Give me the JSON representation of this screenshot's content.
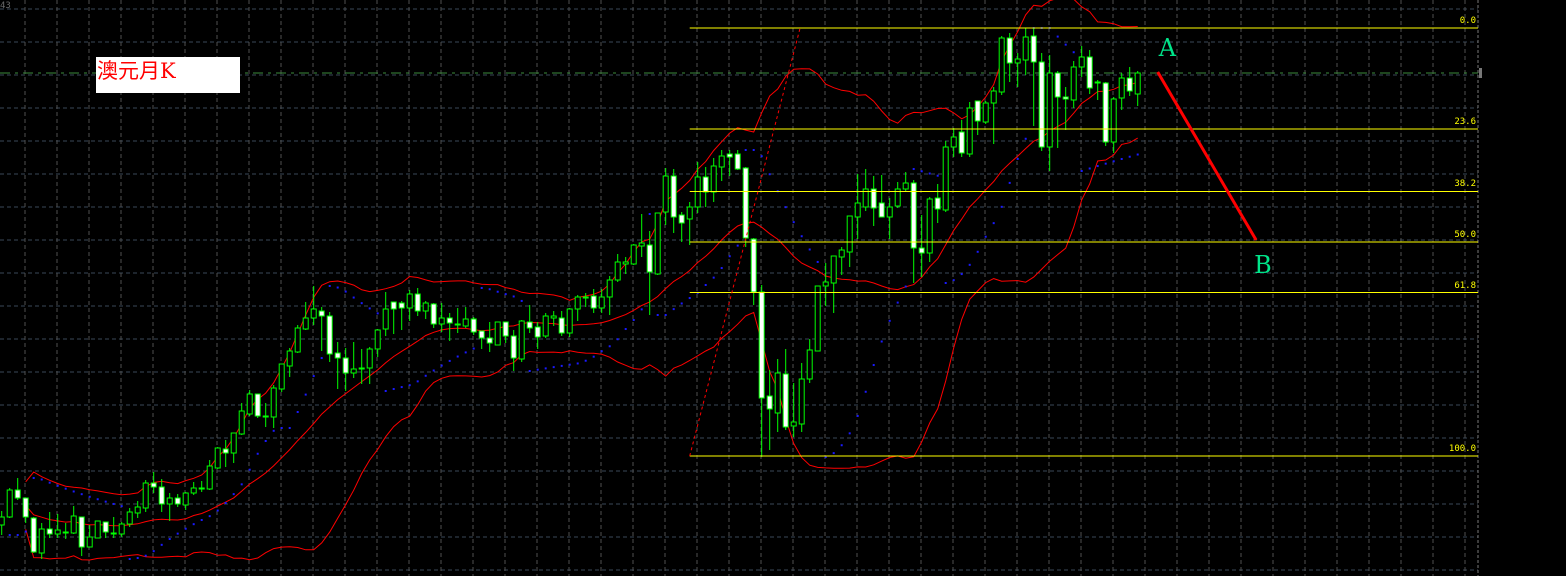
{
  "corner_label": "43",
  "title": "澳元月K",
  "colors": {
    "background": "#000000",
    "candle_outline": "#00ff00",
    "bear_body": "#ffffff",
    "bull_body": "#000000",
    "bollinger": "#ff0000",
    "sar": "#1a1aff",
    "fibonacci": "#ffff00",
    "projection_line": "#ff0000",
    "point_labels": "#00e58a",
    "bid_line": "#3c8c3c",
    "grid_h": "#3a4858",
    "grid_v": "#505050"
  },
  "chart_data": {
    "type": "candlestick",
    "indicators": [
      "bollinger-bands",
      "parabolic-sar"
    ],
    "bid": 1.127,
    "candles": [
      [
        0.675,
        0.689,
        0.665,
        0.683
      ],
      [
        0.683,
        0.712,
        0.682,
        0.71
      ],
      [
        0.71,
        0.722,
        0.7,
        0.702
      ],
      [
        0.702,
        0.702,
        0.677,
        0.683
      ],
      [
        0.682,
        0.683,
        0.647,
        0.648
      ],
      [
        0.647,
        0.677,
        0.641,
        0.671
      ],
      [
        0.671,
        0.688,
        0.662,
        0.666
      ],
      [
        0.666,
        0.686,
        0.662,
        0.67
      ],
      [
        0.668,
        0.677,
        0.661,
        0.668
      ],
      [
        0.667,
        0.694,
        0.666,
        0.684
      ],
      [
        0.683,
        0.683,
        0.644,
        0.653
      ],
      [
        0.653,
        0.675,
        0.653,
        0.663
      ],
      [
        0.662,
        0.679,
        0.662,
        0.679
      ],
      [
        0.678,
        0.678,
        0.662,
        0.668
      ],
      [
        0.667,
        0.683,
        0.662,
        0.667
      ],
      [
        0.666,
        0.678,
        0.663,
        0.676
      ],
      [
        0.676,
        0.692,
        0.673,
        0.688
      ],
      [
        0.687,
        0.699,
        0.682,
        0.693
      ],
      [
        0.692,
        0.72,
        0.688,
        0.717
      ],
      [
        0.717,
        0.728,
        0.707,
        0.713
      ],
      [
        0.713,
        0.721,
        0.688,
        0.696
      ],
      [
        0.696,
        0.707,
        0.679,
        0.702
      ],
      [
        0.702,
        0.706,
        0.693,
        0.696
      ],
      [
        0.695,
        0.708,
        0.69,
        0.707
      ],
      [
        0.707,
        0.718,
        0.705,
        0.712
      ],
      [
        0.712,
        0.719,
        0.708,
        0.712
      ],
      [
        0.711,
        0.74,
        0.71,
        0.734
      ],
      [
        0.732,
        0.753,
        0.731,
        0.752
      ],
      [
        0.751,
        0.76,
        0.733,
        0.747
      ],
      [
        0.747,
        0.767,
        0.737,
        0.767
      ],
      [
        0.766,
        0.797,
        0.765,
        0.789
      ],
      [
        0.786,
        0.81,
        0.784,
        0.806
      ],
      [
        0.806,
        0.806,
        0.782,
        0.784
      ],
      [
        0.784,
        0.797,
        0.773,
        0.784
      ],
      [
        0.783,
        0.815,
        0.772,
        0.812
      ],
      [
        0.811,
        0.836,
        0.808,
        0.836
      ],
      [
        0.834,
        0.852,
        0.823,
        0.849
      ],
      [
        0.848,
        0.875,
        0.847,
        0.872
      ],
      [
        0.871,
        0.898,
        0.87,
        0.882
      ],
      [
        0.882,
        0.914,
        0.875,
        0.891
      ],
      [
        0.889,
        0.893,
        0.849,
        0.884
      ],
      [
        0.884,
        0.888,
        0.838,
        0.846
      ],
      [
        0.847,
        0.858,
        0.811,
        0.842
      ],
      [
        0.842,
        0.852,
        0.809,
        0.827
      ],
      [
        0.827,
        0.858,
        0.822,
        0.831
      ],
      [
        0.832,
        0.851,
        0.816,
        0.832
      ],
      [
        0.832,
        0.853,
        0.816,
        0.851
      ],
      [
        0.851,
        0.871,
        0.843,
        0.87
      ],
      [
        0.871,
        0.908,
        0.864,
        0.891
      ],
      [
        0.898,
        0.898,
        0.866,
        0.891
      ],
      [
        0.897,
        0.899,
        0.87,
        0.892
      ],
      [
        0.892,
        0.91,
        0.879,
        0.906
      ],
      [
        0.906,
        0.912,
        0.884,
        0.889
      ],
      [
        0.889,
        0.899,
        0.881,
        0.897
      ],
      [
        0.896,
        0.897,
        0.872,
        0.876
      ],
      [
        0.876,
        0.897,
        0.868,
        0.882
      ],
      [
        0.882,
        0.887,
        0.859,
        0.877
      ],
      [
        0.876,
        0.892,
        0.867,
        0.876
      ],
      [
        0.874,
        0.893,
        0.872,
        0.881
      ],
      [
        0.881,
        0.883,
        0.865,
        0.868
      ],
      [
        0.869,
        0.869,
        0.851,
        0.862
      ],
      [
        0.862,
        0.878,
        0.848,
        0.857
      ],
      [
        0.855,
        0.878,
        0.855,
        0.878
      ],
      [
        0.878,
        0.878,
        0.857,
        0.864
      ],
      [
        0.864,
        0.87,
        0.829,
        0.842
      ],
      [
        0.841,
        0.88,
        0.838,
        0.879
      ],
      [
        0.878,
        0.895,
        0.867,
        0.872
      ],
      [
        0.873,
        0.878,
        0.851,
        0.863
      ],
      [
        0.864,
        0.887,
        0.862,
        0.884
      ],
      [
        0.882,
        0.889,
        0.874,
        0.884
      ],
      [
        0.882,
        0.889,
        0.864,
        0.867
      ],
      [
        0.867,
        0.892,
        0.863,
        0.891
      ],
      [
        0.891,
        0.905,
        0.879,
        0.903
      ],
      [
        0.903,
        0.907,
        0.893,
        0.903
      ],
      [
        0.904,
        0.911,
        0.887,
        0.892
      ],
      [
        0.892,
        0.911,
        0.887,
        0.903
      ],
      [
        0.903,
        0.924,
        0.885,
        0.92
      ],
      [
        0.92,
        0.946,
        0.918,
        0.938
      ],
      [
        0.936,
        0.943,
        0.926,
        0.938
      ],
      [
        0.936,
        0.956,
        0.935,
        0.955
      ],
      [
        0.954,
        0.986,
        0.943,
        0.957
      ],
      [
        0.955,
        0.969,
        0.885,
        0.928
      ],
      [
        0.926,
        0.987,
        0.925,
        0.987
      ],
      [
        0.988,
        1.032,
        0.975,
        1.024
      ],
      [
        1.024,
        1.031,
        0.967,
        0.983
      ],
      [
        0.985,
        0.988,
        0.958,
        0.977
      ],
      [
        0.981,
        0.998,
        0.955,
        0.993
      ],
      [
        0.993,
        1.038,
        0.987,
        1.023
      ],
      [
        1.023,
        1.033,
        0.993,
        1.008
      ],
      [
        1.008,
        1.042,
        0.998,
        1.034
      ],
      [
        1.033,
        1.05,
        1.019,
        1.044
      ],
      [
        1.046,
        1.05,
        1.024,
        1.043
      ],
      [
        1.046,
        1.05,
        1.03,
        1.031
      ],
      [
        1.032,
        1.033,
        0.953,
        0.962
      ],
      [
        0.961,
        0.962,
        0.895,
        0.908
      ],
      [
        0.908,
        0.915,
        0.743,
        0.802
      ],
      [
        0.804,
        0.83,
        0.75,
        0.791
      ],
      [
        0.787,
        0.841,
        0.768,
        0.827
      ],
      [
        0.826,
        0.851,
        0.77,
        0.773
      ],
      [
        0.774,
        0.817,
        0.763,
        0.778
      ],
      [
        0.776,
        0.837,
        0.768,
        0.821
      ],
      [
        0.821,
        0.861,
        0.817,
        0.85
      ],
      [
        0.849,
        0.914,
        0.849,
        0.914
      ],
      [
        0.914,
        0.937,
        0.894,
        0.918
      ],
      [
        0.917,
        0.944,
        0.887,
        0.944
      ],
      [
        0.943,
        0.953,
        0.925,
        0.95
      ],
      [
        0.948,
        0.984,
        0.933,
        0.984
      ],
      [
        0.983,
        1.026,
        0.961,
        0.997
      ],
      [
        0.993,
        1.031,
        0.989,
        1.011
      ],
      [
        1.011,
        1.024,
        0.974,
        0.992
      ],
      [
        0.997,
        1.025,
        0.983,
        0.983
      ],
      [
        0.983,
        1.002,
        0.961,
        0.993
      ],
      [
        0.994,
        1.018,
        0.992,
        1.011
      ],
      [
        1.011,
        1.028,
        1.009,
        1.017
      ],
      [
        1.017,
        1.02,
        0.917,
        0.952
      ],
      [
        0.952,
        0.985,
        0.923,
        0.947
      ],
      [
        0.947,
        1.003,
        0.938,
        1.001
      ],
      [
        1.002,
        1.016,
        0.977,
        0.991
      ],
      [
        0.99,
        1.059,
        0.988,
        1.053
      ],
      [
        1.053,
        1.072,
        1.043,
        1.063
      ],
      [
        1.068,
        1.08,
        1.043,
        1.047
      ],
      [
        1.046,
        1.098,
        1.043,
        1.092
      ],
      [
        1.099,
        1.099,
        1.065,
        1.079
      ],
      [
        1.078,
        1.099,
        1.076,
        1.097
      ],
      [
        1.097,
        1.113,
        1.056,
        1.109
      ],
      [
        1.108,
        1.164,
        1.105,
        1.162
      ],
      [
        1.162,
        1.167,
        1.118,
        1.137
      ],
      [
        1.137,
        1.147,
        1.113,
        1.141
      ],
      [
        1.14,
        1.172,
        1.125,
        1.163
      ],
      [
        1.164,
        1.172,
        1.074,
        1.138
      ],
      [
        1.138,
        1.147,
        1.049,
        1.053
      ],
      [
        1.053,
        1.145,
        1.029,
        1.127
      ],
      [
        1.127,
        1.129,
        1.052,
        1.103
      ],
      [
        1.103,
        1.113,
        1.07,
        1.101
      ],
      [
        1.1,
        1.139,
        1.092,
        1.133
      ],
      [
        1.133,
        1.154,
        1.123,
        1.143
      ],
      [
        1.143,
        1.15,
        1.106,
        1.112
      ],
      [
        1.118,
        1.12,
        1.1,
        1.118
      ],
      [
        1.117,
        1.118,
        1.054,
        1.058
      ],
      [
        1.058,
        1.103,
        1.047,
        1.101
      ],
      [
        1.102,
        1.127,
        1.09,
        1.122
      ],
      [
        1.122,
        1.133,
        1.104,
        1.109
      ],
      [
        1.106,
        1.129,
        1.094,
        1.127
      ]
    ],
    "fibonacci": {
      "high": 1.172,
      "low": 0.744,
      "start_bar": 86,
      "trend_from": {
        "bar": 86,
        "price": 0.744
      },
      "trend_to": {
        "bar": 99.8,
        "price": 1.172
      },
      "levels": [
        {
          "ratio": 0.0,
          "label": "0.0"
        },
        {
          "ratio": 0.236,
          "label": "23.6"
        },
        {
          "ratio": 0.382,
          "label": "38.2"
        },
        {
          "ratio": 0.5,
          "label": "50.0"
        },
        {
          "ratio": 0.618,
          "label": "61.8"
        },
        {
          "ratio": 1.0,
          "label": "100.0"
        }
      ]
    },
    "projection": {
      "from": {
        "bar": 144.5,
        "price": 1.128,
        "label": "A"
      },
      "to": {
        "bar": 156.8,
        "price": 0.96,
        "label": "B"
      }
    }
  }
}
